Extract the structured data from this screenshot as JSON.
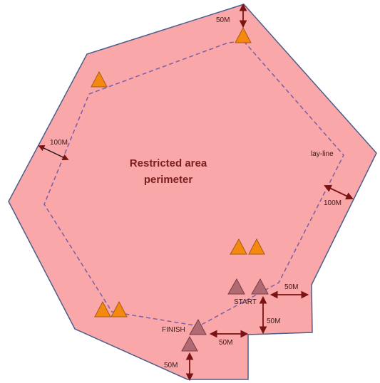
{
  "title_line1": "Restricted area",
  "title_line2": "perimeter",
  "labels": {
    "top_50m": "50M",
    "left_100m": "100M",
    "layline": "lay-line",
    "right_100m": "100M",
    "start_right_50m": "50M",
    "start": "START",
    "start_down_50m": "50M",
    "finish": "FINISH",
    "finish_right_50m": "50M",
    "finish_down_50m": "50M"
  },
  "colors": {
    "area_fill": "#f9a7a8",
    "area_stroke": "#4b5e8c",
    "layline": "#7a5fa8",
    "mark_orange": "#f5890f",
    "mark_start_finish": "#b06a72",
    "arrow": "#7a1414"
  }
}
